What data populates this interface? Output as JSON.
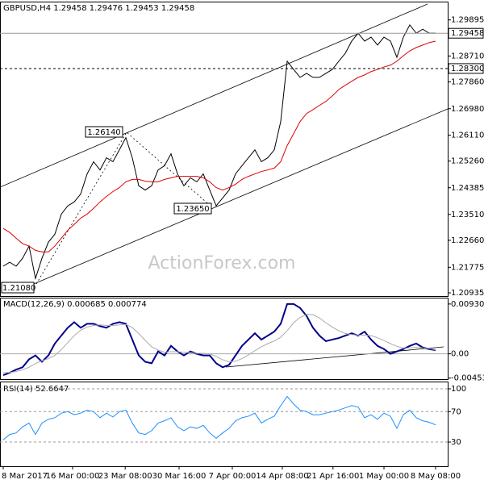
{
  "chart_data": [
    {
      "type": "line",
      "title": "GBPUSD,H4  1.29458 1.29476 1.29453 1.29458",
      "watermark": "ActionForex.com",
      "xlim": [
        0,
        67
      ],
      "ylim": [
        1.2083,
        1.3047
      ],
      "yticks": [
        {
          "value": 1.29895,
          "label": "1.29895"
        },
        {
          "value": 1.2871,
          "label": "1.28710"
        },
        {
          "value": 1.2786,
          "label": "1.27860"
        },
        {
          "value": 1.2698,
          "label": "1.26980"
        },
        {
          "value": 1.2611,
          "label": "1.26110"
        },
        {
          "value": 1.2526,
          "label": "1.25260"
        },
        1.24385,
        {
          "value": 1.2351,
          "label": "1.23510"
        },
        {
          "value": 1.2266,
          "label": "1.22660"
        },
        1.21775,
        1.20935
      ],
      "grid": false,
      "hlines": [
        {
          "value": 1.29458,
          "label": "1.29458",
          "style": "solid"
        },
        {
          "value": 1.283,
          "label": "1.28300",
          "style": "dashed"
        }
      ],
      "annotations": [
        "1.26140",
        "1.23650",
        "1.21080"
      ],
      "series": [
        {
          "color": "#000000",
          "values": [
            1.2181,
            1.2194,
            1.2181,
            1.2207,
            1.2247,
            1.2141,
            1.2207,
            1.226,
            1.2286,
            1.2352,
            1.2379,
            1.2392,
            1.2418,
            1.2484,
            1.2524,
            1.2497,
            1.2537,
            1.2524,
            1.2563,
            1.2603,
            1.2537,
            1.2445,
            1.2431,
            1.2445,
            1.2497,
            1.2511,
            1.255,
            1.2484,
            1.2445,
            1.2471,
            1.2458,
            1.2484,
            1.2431,
            1.2379,
            1.2405,
            1.2431,
            1.2484,
            1.2511,
            1.2537,
            1.2563,
            1.2524,
            1.2537,
            1.2563,
            1.2656,
            1.2854,
            1.2827,
            1.2801,
            1.2814,
            1.2801,
            1.2801,
            1.2814,
            1.2827,
            1.2854,
            1.288,
            1.292,
            1.2946,
            1.292,
            1.2933,
            1.2907,
            1.2933,
            1.292,
            1.2867,
            1.2933,
            1.2973,
            1.2946,
            1.2959,
            1.2946,
            1.2946
          ]
        },
        {
          "color": "#e00000",
          "values": [
            1.2305,
            1.2292,
            1.2273,
            1.2255,
            1.2247,
            1.2233,
            1.2228,
            1.2228,
            1.2247,
            1.2273,
            1.2299,
            1.2318,
            1.2339,
            1.2352,
            1.2371,
            1.2392,
            1.241,
            1.2426,
            1.2439,
            1.2458,
            1.2466,
            1.2466,
            1.246,
            1.2458,
            1.2458,
            1.2466,
            1.2471,
            1.2476,
            1.2476,
            1.2476,
            1.2476,
            1.2471,
            1.2458,
            1.2439,
            1.2431,
            1.2439,
            1.245,
            1.2466,
            1.2476,
            1.2484,
            1.2492,
            1.2497,
            1.2503,
            1.2524,
            1.2577,
            1.2616,
            1.2656,
            1.2682,
            1.2695,
            1.2709,
            1.2722,
            1.274,
            1.2761,
            1.2775,
            1.2788,
            1.2801,
            1.2809,
            1.282,
            1.2827,
            1.2835,
            1.2841,
            1.2854,
            1.2872,
            1.2888,
            1.2899,
            1.2907,
            1.2915,
            1.292
          ]
        }
      ]
    },
    {
      "type": "line",
      "title": "MACD(12,26,9) 0.000685 0.000774",
      "xlim": [
        0,
        67
      ],
      "ylim": [
        -0.00473,
        0.01034
      ],
      "yticks": [
        0.009306,
        {
          "value": 0,
          "label": "0.00"
        },
        -0.004537
      ],
      "grid": false,
      "zero_line": true,
      "series": [
        {
          "color": "#00008b",
          "values": [
            -0.00399,
            -0.00354,
            -0.00295,
            -0.00251,
            -0.00103,
            -0.0003,
            -0.00148,
            -0.0003,
            0.00192,
            0.0034,
            0.00487,
            0.00591,
            0.00487,
            0.00561,
            0.00561,
            0.00517,
            0.00487,
            0.00561,
            0.00591,
            0.00561,
            0.00266,
            -0.0003,
            -0.00148,
            -0.00177,
            0.00044,
            -0.0003,
            0.00148,
            0.00044,
            -0.0003,
            0.00044,
            0,
            -0.0003,
            -0.0003,
            -0.00177,
            -0.00251,
            -0.00207,
            -0.0003,
            0.00148,
            0.00266,
            0.00384,
            0.00266,
            0.0034,
            0.00414,
            0.00561,
            0.00931,
            0.00931,
            0.00857,
            0.00709,
            0.00487,
            0.0034,
            0.00236,
            0.00266,
            0.00295,
            0.0034,
            0.00384,
            0.0034,
            0.00414,
            0.00266,
            0.00148,
            0.00089,
            0,
            0.00044,
            0.00089,
            0.00148,
            0.00192,
            0.00118,
            0.00089,
            0.000685
          ]
        },
        {
          "color": "#aaaaaa",
          "values": [
            -0.0035,
            -0.0035,
            -0.0033,
            -0.003,
            -0.0025,
            -0.0018,
            -0.0013,
            -0.0009,
            -0.0003,
            0.0008,
            0.0021,
            0.0034,
            0.0044,
            0.005,
            0.0053,
            0.0054,
            0.0053,
            0.0053,
            0.0054,
            0.0055,
            0.0049,
            0.0038,
            0.0025,
            0.0013,
            0.0007,
            0.0003,
            0.0004,
            0.0004,
            0.0003,
            0.0002,
            0.0001,
            0.0001,
            0,
            -0.0005,
            -0.0011,
            -0.0015,
            -0.0014,
            -0.0009,
            -0.0002,
            0.0006,
            0.0013,
            0.0019,
            0.0024,
            0.0031,
            0.0043,
            0.0058,
            0.0068,
            0.0074,
            0.0073,
            0.0067,
            0.0058,
            0.005,
            0.0043,
            0.0038,
            0.0036,
            0.0035,
            0.0035,
            0.0034,
            0.003,
            0.0025,
            0.0019,
            0.0014,
            0.0011,
            0.0011,
            0.0012,
            0.0011,
            0.001,
            0.000774
          ]
        }
      ]
    },
    {
      "type": "line",
      "title": "RSI(14) 52.6647",
      "xlim": [
        0,
        67
      ],
      "xticks": [
        {
          "value": 0,
          "label": "8 Mar 2017"
        },
        {
          "value": 10.75,
          "label": "16 Mar 00:00"
        },
        {
          "value": 18.9,
          "label": "23 Mar 08:00"
        },
        {
          "value": 27.25,
          "label": "30 Mar 16:00"
        },
        {
          "value": 35.5,
          "label": "7 Apr 00:00"
        },
        {
          "value": 43.25,
          "label": "14 Apr 08:00"
        },
        {
          "value": 51.1,
          "label": "21 Apr 16:00"
        },
        {
          "value": 59,
          "label": "1 May 00:00"
        },
        {
          "value": 67,
          "label": "8 May 08:00"
        }
      ],
      "ylim": [
        -1.8,
        108.5
      ],
      "yticks": [
        100,
        70,
        30
      ],
      "grid": true,
      "series": [
        {
          "color": "#1e90ff",
          "values": [
            33,
            40,
            42,
            50,
            55,
            40,
            55,
            60,
            62,
            68,
            70,
            66,
            68,
            72,
            70,
            62,
            68,
            63,
            70,
            72,
            55,
            42,
            40,
            45,
            55,
            58,
            62,
            50,
            45,
            50,
            48,
            52,
            42,
            35,
            42,
            48,
            58,
            62,
            64,
            68,
            55,
            60,
            64,
            78,
            90,
            80,
            72,
            70,
            66,
            66,
            68,
            70,
            72,
            75,
            78,
            76,
            62,
            66,
            60,
            68,
            64,
            48,
            66,
            72,
            62,
            58,
            56,
            52.6647
          ]
        }
      ]
    }
  ]
}
